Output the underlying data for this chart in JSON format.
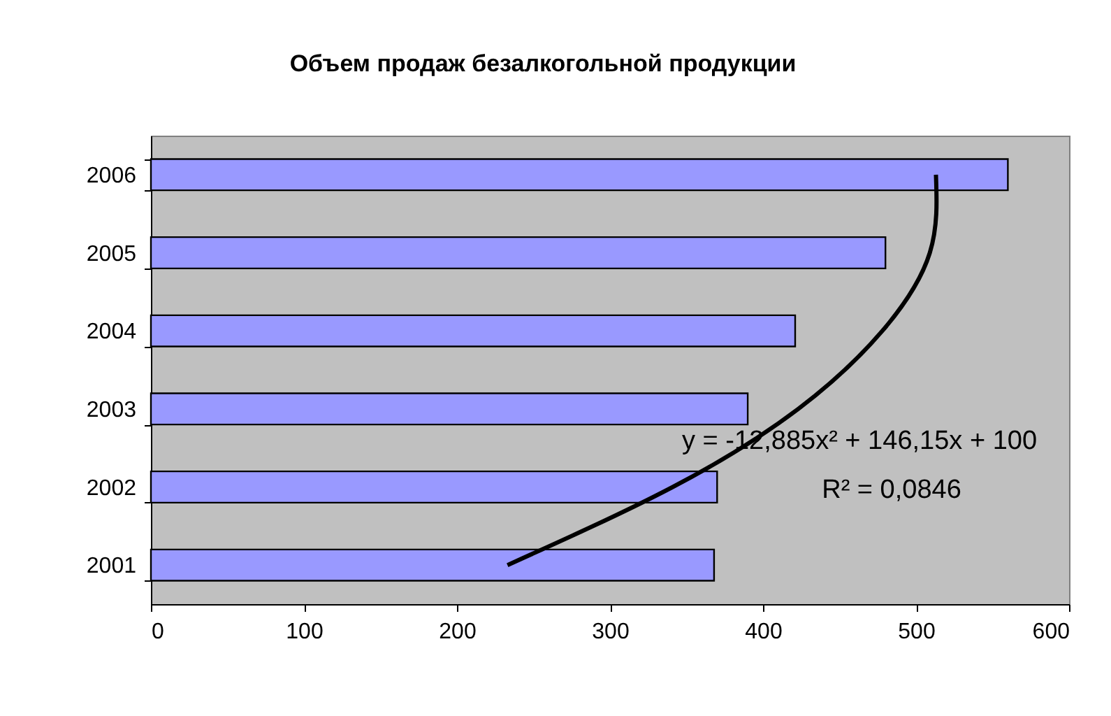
{
  "chart_data": {
    "type": "bar",
    "orientation": "horizontal",
    "title": "Объем продаж безалкогольной продукции",
    "categories": [
      "2006",
      "2005",
      "2004",
      "2003",
      "2002",
      "2001"
    ],
    "series": [
      {
        "color": "#9999ff",
        "values": [
          560,
          480,
          421,
          390,
          370,
          368
        ]
      },
      {
        "type": "line",
        "color": "#000000",
        "values": [
          513,
          509,
          478,
          423,
          341,
          233
        ]
      }
    ],
    "xlim": [
      0,
      600
    ],
    "xticks": [
      0,
      100,
      200,
      300,
      400,
      500,
      600
    ],
    "grid": false,
    "annotations": [
      "y = -12,885x² + 146,15x + 100",
      "R² = 0,0846"
    ]
  }
}
